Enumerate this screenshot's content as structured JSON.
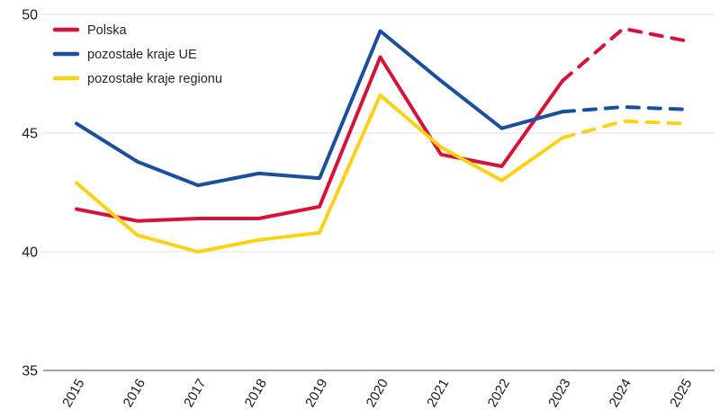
{
  "chart_data": {
    "type": "line",
    "title": "",
    "xlabel": "",
    "ylabel": "",
    "x": [
      "2015",
      "2016",
      "2017",
      "2018",
      "2019",
      "2020",
      "2021",
      "2022",
      "2023",
      "2024",
      "2025"
    ],
    "ylim": [
      35,
      50
    ],
    "yticks": [
      35,
      40,
      45,
      50
    ],
    "grid": "horizontal",
    "legend_position": "top-left",
    "forecast_dashed_from_x": "2023",
    "series": [
      {
        "name": "Polska",
        "color": "#d5133a",
        "values": [
          41.8,
          41.3,
          41.4,
          41.4,
          41.9,
          48.2,
          44.1,
          43.6,
          47.2,
          49.4,
          48.9
        ]
      },
      {
        "name": "pozostałe kraje UE",
        "color": "#1a4f9d",
        "values": [
          45.4,
          43.8,
          42.8,
          43.3,
          43.1,
          49.3,
          47.2,
          45.2,
          45.9,
          46.1,
          46.0
        ]
      },
      {
        "name": "pozostałe kraje regionu",
        "color": "#fcd116",
        "values": [
          42.9,
          40.7,
          40.0,
          40.5,
          40.8,
          46.6,
          44.4,
          43.0,
          44.8,
          45.5,
          45.4
        ]
      }
    ]
  },
  "style": {
    "grid_color": "#ebebeb",
    "axis_color": "#a3a3a3",
    "text_color": "#1a1a1a",
    "legend_text_color": "#262626"
  }
}
